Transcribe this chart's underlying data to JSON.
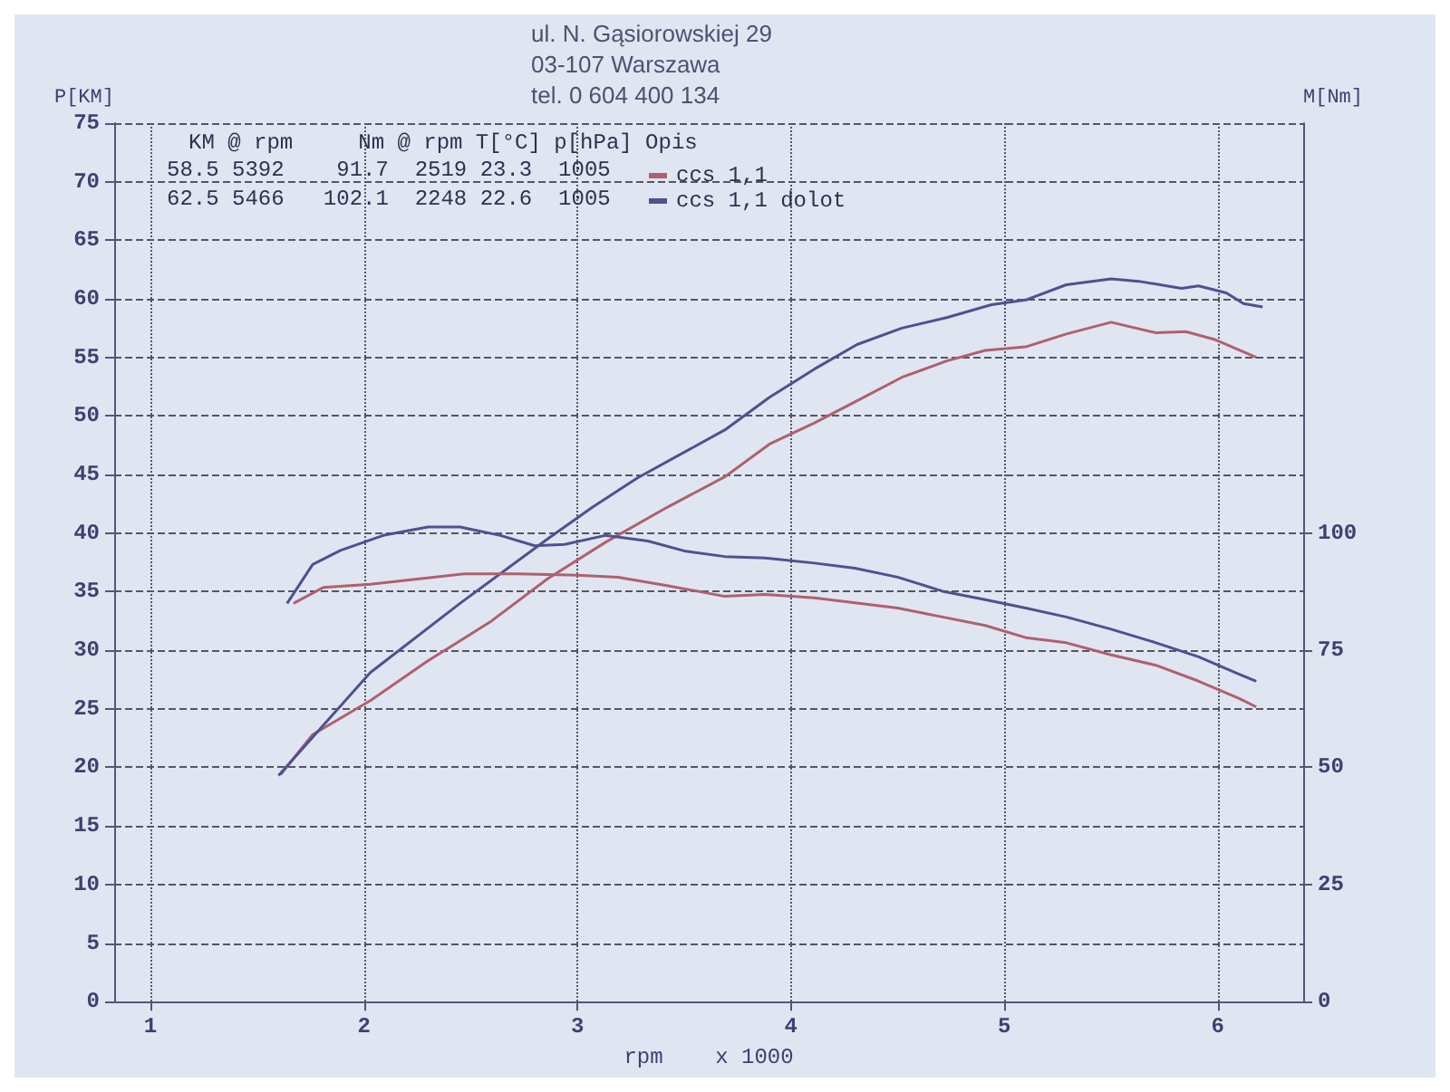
{
  "chart_data": {
    "type": "line",
    "xlabel": "rpm    x 1000",
    "ylabel": "P[KM]",
    "y2label": "M[Nm]",
    "annotations": [
      "ul. N. Gąsiorowskiej 29",
      "03-107 Warszawa",
      "tel. 0 604 400 134",
      "KM @ rpm     Nm @ rpm T[°C] p[hPa] Opis",
      "58.5 5392    91.7  2519 23.3  1005",
      "62.5 5466   102.1  2248 22.6  1005"
    ],
    "xlim": [
      0.83,
      6.4
    ],
    "xticks": [
      1,
      2,
      3,
      4,
      5,
      6
    ],
    "ylim": [
      0,
      75
    ],
    "yticks": [
      0,
      5,
      10,
      15,
      20,
      25,
      30,
      35,
      40,
      45,
      50,
      55,
      60,
      65,
      70,
      75
    ],
    "y2lim": [
      0,
      187.5
    ],
    "y2ticks": [
      0,
      25,
      50,
      75,
      100
    ],
    "grid": true,
    "legend": "top left",
    "marker": "none",
    "line_style": "solid",
    "series": [
      {
        "name": "ccs 1,1",
        "color": "#b0606e",
        "x": [
          1.61,
          1.76,
          2.03,
          2.3,
          2.59,
          2.86,
          3.13,
          3.42,
          3.69,
          3.9,
          4.11,
          4.31,
          4.52,
          4.73,
          4.91,
          5.1,
          5.29,
          5.5,
          5.71,
          5.85,
          5.99,
          6.18
        ],
        "values": [
          19.4,
          22.8,
          25.7,
          29.1,
          32.4,
          36.1,
          39.2,
          42.2,
          44.8,
          47.6,
          49.4,
          51.3,
          53.3,
          54.7,
          55.6,
          55.9,
          57,
          58,
          57.1,
          57.2,
          56.5,
          55
        ]
      },
      {
        "name": "ccs 1,1 dolot",
        "color": "#505090",
        "x": [
          1.6,
          2.03,
          2.45,
          2.86,
          3.07,
          3.28,
          3.69,
          3.9,
          4.11,
          4.31,
          4.52,
          4.73,
          4.94,
          5.1,
          5.29,
          5.5,
          5.63,
          5.83,
          5.91,
          6.04,
          6.12,
          6.21
        ],
        "values": [
          19.3,
          28.1,
          34,
          39.5,
          42.2,
          44.7,
          48.8,
          51.6,
          54,
          56.1,
          57.5,
          58.4,
          59.5,
          59.9,
          61.2,
          61.7,
          61.5,
          60.9,
          61.1,
          60.5,
          59.6,
          59.3
        ]
      },
      {
        "color": "#b0606e",
        "axis": "y2",
        "x": [
          1.67,
          1.81,
          2.03,
          2.25,
          2.47,
          2.72,
          3,
          3.19,
          3.42,
          3.69,
          3.88,
          4.11,
          4.3,
          4.5,
          4.71,
          4.91,
          5.1,
          5.29,
          5.5,
          5.71,
          5.91,
          6.1,
          6.18
        ],
        "values": [
          85,
          88.4,
          89.1,
          90.2,
          91.3,
          91.3,
          91,
          90.6,
          88.8,
          86.5,
          86.9,
          86.2,
          85.1,
          84,
          82.1,
          80.3,
          77.7,
          76.6,
          74,
          71.8,
          68.4,
          64.7,
          62.9
        ]
      },
      {
        "color": "#505090",
        "axis": "y2",
        "x": [
          1.64,
          1.76,
          1.89,
          2.09,
          2.3,
          2.45,
          2.64,
          2.8,
          2.94,
          3.13,
          3.33,
          3.5,
          3.69,
          3.88,
          4.11,
          4.3,
          4.5,
          4.71,
          4.91,
          5.1,
          5.29,
          5.5,
          5.71,
          5.91,
          6.1,
          6.18
        ],
        "values": [
          85,
          93.3,
          96.3,
          99.5,
          101.3,
          101.3,
          99.5,
          97.3,
          97.6,
          99.5,
          98.3,
          96.2,
          95,
          94.7,
          93.6,
          92.5,
          90.6,
          87.6,
          85.8,
          84,
          82.1,
          79.5,
          76.6,
          73.6,
          69.9,
          68.4
        ]
      }
    ]
  }
}
